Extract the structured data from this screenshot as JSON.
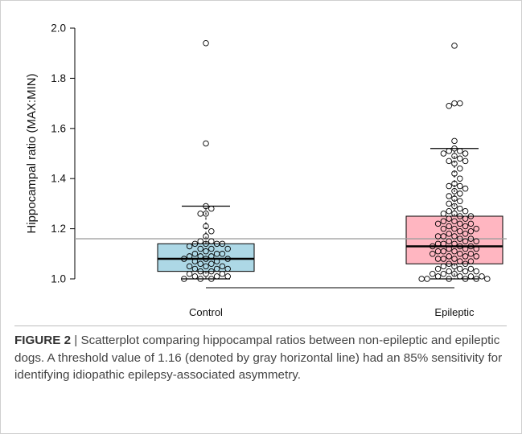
{
  "chart_data": {
    "type": "box",
    "categories": [
      "Control",
      "Epileptic"
    ],
    "ylabel": "Hippocampal ratio (MAX:MIN)",
    "ylim": [
      1.0,
      2.0
    ],
    "yticks": [
      "1.0",
      "1.2",
      "1.4",
      "1.6",
      "1.8",
      "2.0"
    ],
    "threshold": 1.16,
    "colors": {
      "control_box": "#add8e6",
      "epileptic_box": "#ffb6c1",
      "threshold_line": "#9e9e9e"
    },
    "boxes": [
      {
        "category": "Control",
        "whisker_low": 1.0,
        "q1": 1.03,
        "median": 1.08,
        "q3": 1.14,
        "whisker_high": 1.29,
        "points": [
          1.94,
          1.54,
          1.29,
          1.28,
          1.26,
          1.26,
          1.21,
          1.19,
          1.17,
          1.15,
          1.15,
          1.14,
          1.14,
          1.14,
          1.14,
          1.13,
          1.12,
          1.12,
          1.12,
          1.11,
          1.1,
          1.1,
          1.1,
          1.09,
          1.09,
          1.09,
          1.08,
          1.08,
          1.08,
          1.07,
          1.07,
          1.06,
          1.06,
          1.05,
          1.05,
          1.05,
          1.04,
          1.04,
          1.04,
          1.03,
          1.03,
          1.02,
          1.02,
          1.02,
          1.01,
          1.01,
          1.01,
          1.0,
          1.0,
          1.0
        ]
      },
      {
        "category": "Epileptic",
        "whisker_low": 1.0,
        "q1": 1.06,
        "median": 1.13,
        "q3": 1.25,
        "whisker_high": 1.52,
        "points": [
          1.93,
          1.7,
          1.7,
          1.69,
          1.55,
          1.52,
          1.51,
          1.51,
          1.5,
          1.5,
          1.49,
          1.48,
          1.47,
          1.47,
          1.46,
          1.44,
          1.42,
          1.4,
          1.38,
          1.37,
          1.37,
          1.36,
          1.35,
          1.34,
          1.33,
          1.32,
          1.31,
          1.3,
          1.29,
          1.28,
          1.27,
          1.27,
          1.26,
          1.26,
          1.25,
          1.25,
          1.24,
          1.24,
          1.23,
          1.23,
          1.22,
          1.22,
          1.22,
          1.21,
          1.21,
          1.2,
          1.2,
          1.2,
          1.19,
          1.19,
          1.18,
          1.18,
          1.17,
          1.17,
          1.17,
          1.16,
          1.16,
          1.15,
          1.15,
          1.15,
          1.14,
          1.14,
          1.14,
          1.13,
          1.13,
          1.13,
          1.12,
          1.12,
          1.12,
          1.11,
          1.11,
          1.11,
          1.1,
          1.1,
          1.1,
          1.09,
          1.09,
          1.09,
          1.08,
          1.08,
          1.08,
          1.07,
          1.07,
          1.06,
          1.06,
          1.05,
          1.05,
          1.04,
          1.04,
          1.04,
          1.03,
          1.03,
          1.03,
          1.02,
          1.02,
          1.02,
          1.01,
          1.01,
          1.01,
          1.01,
          1.0,
          1.0,
          1.0,
          1.0,
          1.0,
          1.0
        ]
      }
    ]
  },
  "caption": {
    "label": "FIGURE 2",
    "separator": " | ",
    "text": "Scatterplot comparing hippocampal ratios between non-epileptic and epileptic dogs. A threshold value of 1.16 (denoted by gray horizontal line) had an 85% sensitivity for identifying idiopathic epilepsy-associated asymmetry."
  }
}
